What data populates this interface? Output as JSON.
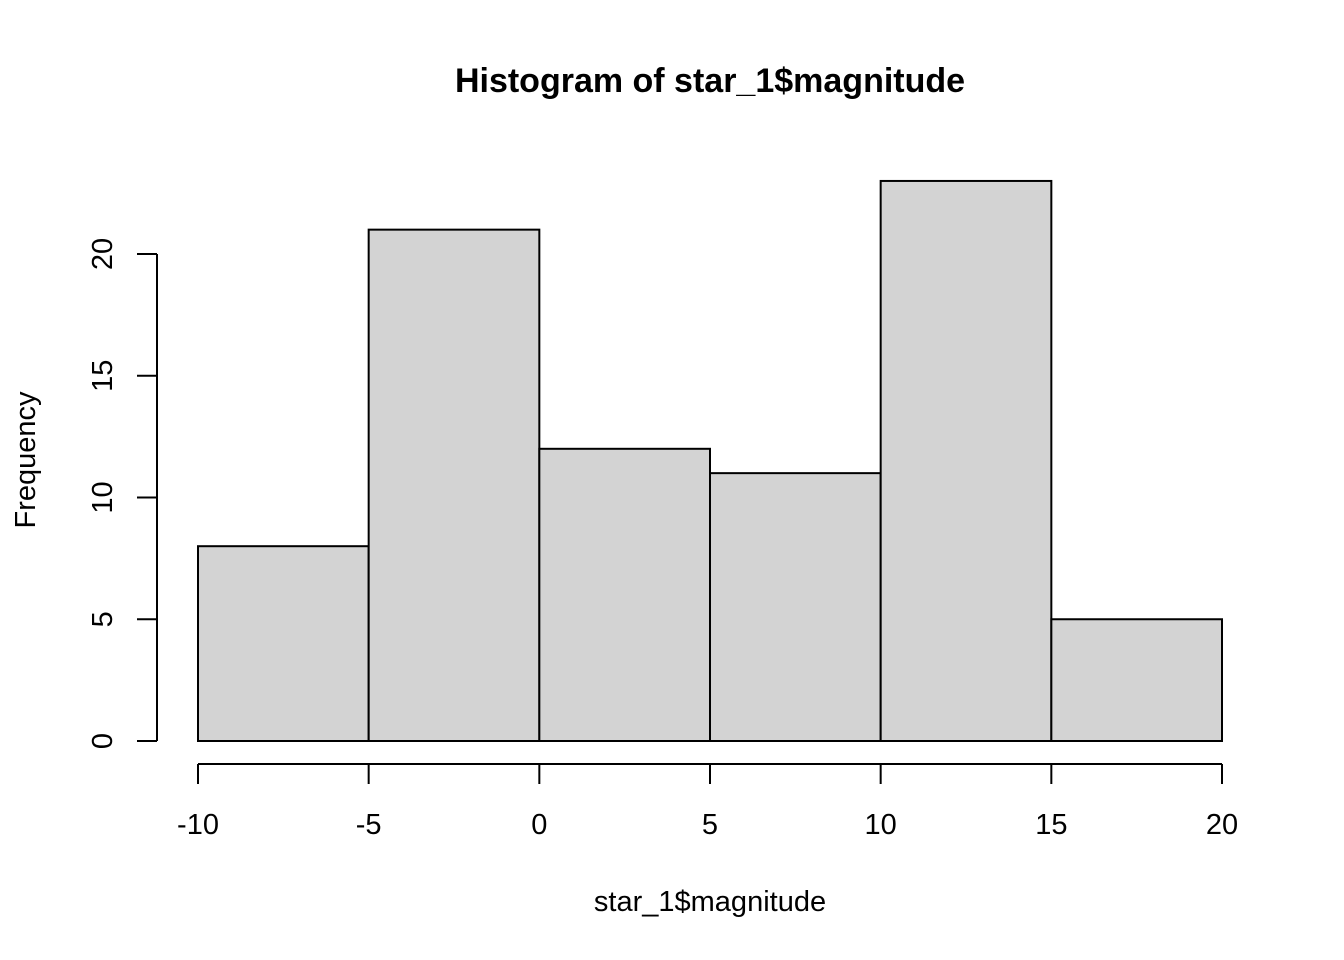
{
  "chart_data": {
    "type": "bar",
    "subtype": "histogram",
    "title": "Histogram of star_1$magnitude",
    "xlabel": "star_1$magnitude",
    "ylabel": "Frequency",
    "bins": [
      {
        "from": -10,
        "to": -5,
        "count": 8
      },
      {
        "from": -5,
        "to": 0,
        "count": 21
      },
      {
        "from": 0,
        "to": 5,
        "count": 12
      },
      {
        "from": 5,
        "to": 10,
        "count": 11
      },
      {
        "from": 10,
        "to": 15,
        "count": 23
      },
      {
        "from": 15,
        "to": 20,
        "count": 5
      }
    ],
    "xlim": [
      -10,
      20
    ],
    "ylim": [
      0,
      23
    ],
    "x_ticks": [
      -10,
      -5,
      0,
      5,
      10,
      15,
      20
    ],
    "x_tick_labels": [
      "-10",
      "-5",
      "0",
      "5",
      "10",
      "15",
      "20"
    ],
    "y_ticks": [
      0,
      5,
      10,
      15,
      20
    ],
    "y_tick_labels": [
      "0",
      "5",
      "10",
      "15",
      "20"
    ],
    "grid": false,
    "legend": false,
    "bar_color": "#d3d3d3",
    "edge_color": "#000000"
  }
}
